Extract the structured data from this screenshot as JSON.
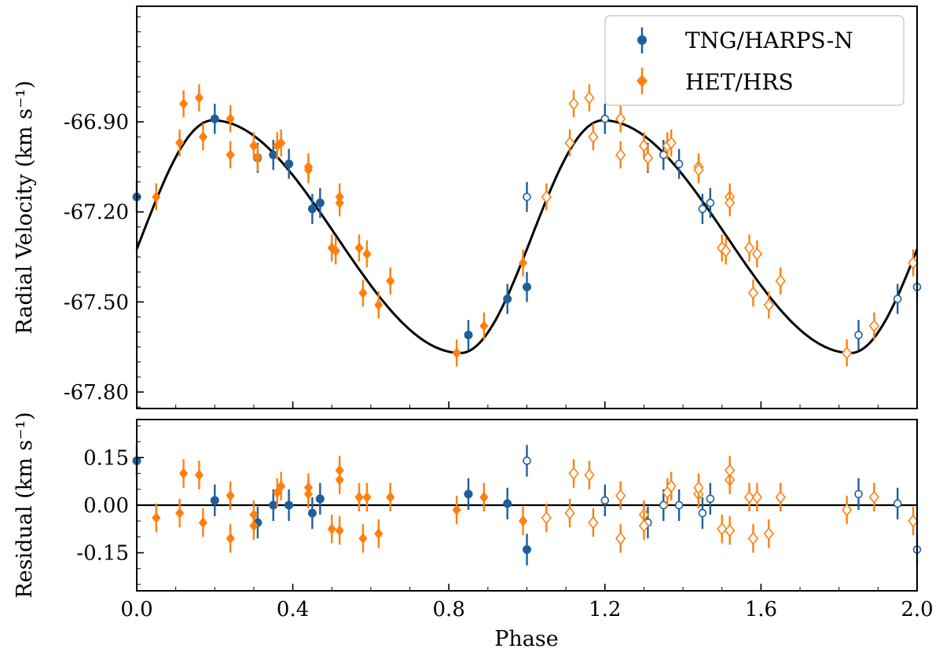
{
  "chart_data": [
    {
      "type": "scatter",
      "panel": "radial-velocity",
      "ylabel": "Radial Velocity (km s⁻¹)",
      "xlabel": "",
      "xlim": [
        0.0,
        2.0
      ],
      "ylim": [
        -67.855,
        -66.515
      ],
      "yticks": [
        "-66.90",
        "-67.20",
        "-67.50",
        "-67.80"
      ],
      "ytick_values": [
        -66.9,
        -67.2,
        -67.5,
        -67.8
      ],
      "legend": {
        "position": "top-right",
        "entries": [
          "TNG/HARPS-N",
          "HET/HRS"
        ]
      },
      "model": {
        "name": "Keplerian fit",
        "period_phase": 1.0,
        "max": -66.895,
        "min": -67.67,
        "peak_phase": 0.195,
        "trough_phase": 0.83
      },
      "series": [
        {
          "name": "TNG/HARPS-N",
          "color": "#1f5f99",
          "marker": "circle",
          "points": [
            {
              "x": 0.0,
              "y": -67.15,
              "e": 0.05
            },
            {
              "x": 0.2,
              "y": -66.89,
              "e": 0.05
            },
            {
              "x": 0.31,
              "y": -67.02,
              "e": 0.05
            },
            {
              "x": 0.35,
              "y": -67.01,
              "e": 0.05
            },
            {
              "x": 0.39,
              "y": -67.04,
              "e": 0.05
            },
            {
              "x": 0.45,
              "y": -67.19,
              "e": 0.05
            },
            {
              "x": 0.47,
              "y": -67.17,
              "e": 0.05
            },
            {
              "x": 0.85,
              "y": -67.61,
              "e": 0.05
            },
            {
              "x": 0.95,
              "y": -67.49,
              "e": 0.05
            },
            {
              "x": 1.0,
              "y": -67.45,
              "e": 0.05
            },
            {
              "x": 1.0,
              "y": -67.15,
              "e": 0.05,
              "open": true
            },
            {
              "x": 1.2,
              "y": -66.89,
              "e": 0.05,
              "open": true
            },
            {
              "x": 1.31,
              "y": -67.02,
              "e": 0.05,
              "open": true
            },
            {
              "x": 1.35,
              "y": -67.01,
              "e": 0.05,
              "open": true
            },
            {
              "x": 1.39,
              "y": -67.04,
              "e": 0.05,
              "open": true
            },
            {
              "x": 1.45,
              "y": -67.19,
              "e": 0.05,
              "open": true
            },
            {
              "x": 1.47,
              "y": -67.17,
              "e": 0.05,
              "open": true
            },
            {
              "x": 1.85,
              "y": -67.61,
              "e": 0.05,
              "open": true
            },
            {
              "x": 1.95,
              "y": -67.49,
              "e": 0.05,
              "open": true
            },
            {
              "x": 2.0,
              "y": -67.45,
              "e": 0.05,
              "open": true
            }
          ]
        },
        {
          "name": "HET/HRS",
          "color": "#ff7f0e",
          "marker": "diamond",
          "points": [
            {
              "x": 0.05,
              "y": -67.15,
              "e": 0.045
            },
            {
              "x": 0.11,
              "y": -66.97,
              "e": 0.045
            },
            {
              "x": 0.12,
              "y": -66.84,
              "e": 0.045
            },
            {
              "x": 0.16,
              "y": -66.82,
              "e": 0.045
            },
            {
              "x": 0.17,
              "y": -66.95,
              "e": 0.045
            },
            {
              "x": 0.24,
              "y": -66.89,
              "e": 0.045
            },
            {
              "x": 0.24,
              "y": -67.01,
              "e": 0.045
            },
            {
              "x": 0.3,
              "y": -66.98,
              "e": 0.045
            },
            {
              "x": 0.31,
              "y": -67.02,
              "e": 0.045
            },
            {
              "x": 0.36,
              "y": -66.98,
              "e": 0.045
            },
            {
              "x": 0.37,
              "y": -66.97,
              "e": 0.045
            },
            {
              "x": 0.44,
              "y": -67.05,
              "e": 0.045
            },
            {
              "x": 0.44,
              "y": -67.06,
              "e": 0.045
            },
            {
              "x": 0.5,
              "y": -67.32,
              "e": 0.045
            },
            {
              "x": 0.51,
              "y": -67.33,
              "e": 0.045
            },
            {
              "x": 0.52,
              "y": -67.15,
              "e": 0.045
            },
            {
              "x": 0.52,
              "y": -67.17,
              "e": 0.045
            },
            {
              "x": 0.57,
              "y": -67.32,
              "e": 0.045
            },
            {
              "x": 0.58,
              "y": -67.47,
              "e": 0.045
            },
            {
              "x": 0.59,
              "y": -67.34,
              "e": 0.045
            },
            {
              "x": 0.62,
              "y": -67.51,
              "e": 0.045
            },
            {
              "x": 0.65,
              "y": -67.43,
              "e": 0.045
            },
            {
              "x": 0.82,
              "y": -67.67,
              "e": 0.045
            },
            {
              "x": 0.89,
              "y": -67.58,
              "e": 0.045
            },
            {
              "x": 0.99,
              "y": -67.37,
              "e": 0.045
            },
            {
              "x": 1.05,
              "y": -67.15,
              "e": 0.045,
              "open": true
            },
            {
              "x": 1.11,
              "y": -66.97,
              "e": 0.045,
              "open": true
            },
            {
              "x": 1.12,
              "y": -66.84,
              "e": 0.045,
              "open": true
            },
            {
              "x": 1.16,
              "y": -66.82,
              "e": 0.045,
              "open": true
            },
            {
              "x": 1.17,
              "y": -66.95,
              "e": 0.045,
              "open": true
            },
            {
              "x": 1.24,
              "y": -66.89,
              "e": 0.045,
              "open": true
            },
            {
              "x": 1.24,
              "y": -67.01,
              "e": 0.045,
              "open": true
            },
            {
              "x": 1.3,
              "y": -66.98,
              "e": 0.045,
              "open": true
            },
            {
              "x": 1.31,
              "y": -67.02,
              "e": 0.045,
              "open": true
            },
            {
              "x": 1.36,
              "y": -66.98,
              "e": 0.045,
              "open": true
            },
            {
              "x": 1.37,
              "y": -66.97,
              "e": 0.045,
              "open": true
            },
            {
              "x": 1.44,
              "y": -67.05,
              "e": 0.045,
              "open": true
            },
            {
              "x": 1.44,
              "y": -67.06,
              "e": 0.045,
              "open": true
            },
            {
              "x": 1.5,
              "y": -67.32,
              "e": 0.045,
              "open": true
            },
            {
              "x": 1.51,
              "y": -67.33,
              "e": 0.045,
              "open": true
            },
            {
              "x": 1.52,
              "y": -67.15,
              "e": 0.045,
              "open": true
            },
            {
              "x": 1.52,
              "y": -67.17,
              "e": 0.045,
              "open": true
            },
            {
              "x": 1.57,
              "y": -67.32,
              "e": 0.045,
              "open": true
            },
            {
              "x": 1.58,
              "y": -67.47,
              "e": 0.045,
              "open": true
            },
            {
              "x": 1.59,
              "y": -67.34,
              "e": 0.045,
              "open": true
            },
            {
              "x": 1.62,
              "y": -67.51,
              "e": 0.045,
              "open": true
            },
            {
              "x": 1.65,
              "y": -67.43,
              "e": 0.045,
              "open": true
            },
            {
              "x": 1.82,
              "y": -67.67,
              "e": 0.045,
              "open": true
            },
            {
              "x": 1.89,
              "y": -67.58,
              "e": 0.045,
              "open": true
            },
            {
              "x": 1.99,
              "y": -67.37,
              "e": 0.045,
              "open": true
            }
          ]
        }
      ]
    },
    {
      "type": "scatter",
      "panel": "residual",
      "xlabel": "Phase",
      "ylabel": "Residual (km s⁻¹)",
      "xlim": [
        0.0,
        2.0
      ],
      "ylim": [
        -0.27,
        0.27
      ],
      "xticks": [
        "0.0",
        "0.4",
        "0.8",
        "1.2",
        "1.6",
        "2.0"
      ],
      "xtick_values": [
        0.0,
        0.4,
        0.8,
        1.2,
        1.6,
        2.0
      ],
      "yticks": [
        "0.15",
        "0.00",
        "-0.15"
      ],
      "ytick_values": [
        0.15,
        0.0,
        -0.15
      ],
      "zero_line": 0.0,
      "series": [
        {
          "name": "TNG/HARPS-N",
          "color": "#1f5f99",
          "marker": "circle",
          "points": [
            {
              "x": 0.0,
              "y": 0.14,
              "e": 0.05
            },
            {
              "x": 0.2,
              "y": 0.015,
              "e": 0.05
            },
            {
              "x": 0.31,
              "y": -0.055,
              "e": 0.05
            },
            {
              "x": 0.35,
              "y": 0.0,
              "e": 0.05
            },
            {
              "x": 0.39,
              "y": 0.0,
              "e": 0.05
            },
            {
              "x": 0.45,
              "y": -0.025,
              "e": 0.05
            },
            {
              "x": 0.47,
              "y": 0.02,
              "e": 0.05
            },
            {
              "x": 0.85,
              "y": 0.035,
              "e": 0.05
            },
            {
              "x": 0.95,
              "y": 0.005,
              "e": 0.05
            },
            {
              "x": 1.0,
              "y": -0.14,
              "e": 0.05
            },
            {
              "x": 1.0,
              "y": 0.14,
              "e": 0.05,
              "open": true
            },
            {
              "x": 1.2,
              "y": 0.015,
              "e": 0.05,
              "open": true
            },
            {
              "x": 1.31,
              "y": -0.055,
              "e": 0.05,
              "open": true
            },
            {
              "x": 1.35,
              "y": 0.0,
              "e": 0.05,
              "open": true
            },
            {
              "x": 1.39,
              "y": 0.0,
              "e": 0.05,
              "open": true
            },
            {
              "x": 1.45,
              "y": -0.025,
              "e": 0.05,
              "open": true
            },
            {
              "x": 1.47,
              "y": 0.02,
              "e": 0.05,
              "open": true
            },
            {
              "x": 1.85,
              "y": 0.035,
              "e": 0.05,
              "open": true
            },
            {
              "x": 1.95,
              "y": 0.005,
              "e": 0.05,
              "open": true
            },
            {
              "x": 2.0,
              "y": -0.14,
              "e": 0.05,
              "open": true
            }
          ]
        },
        {
          "name": "HET/HRS",
          "color": "#ff7f0e",
          "marker": "diamond",
          "points": [
            {
              "x": 0.05,
              "y": -0.04,
              "e": 0.045
            },
            {
              "x": 0.11,
              "y": -0.025,
              "e": 0.045
            },
            {
              "x": 0.12,
              "y": 0.1,
              "e": 0.045
            },
            {
              "x": 0.16,
              "y": 0.095,
              "e": 0.045
            },
            {
              "x": 0.17,
              "y": -0.055,
              "e": 0.045
            },
            {
              "x": 0.24,
              "y": 0.03,
              "e": 0.045
            },
            {
              "x": 0.24,
              "y": -0.105,
              "e": 0.045
            },
            {
              "x": 0.3,
              "y": -0.03,
              "e": 0.045
            },
            {
              "x": 0.3,
              "y": -0.065,
              "e": 0.045
            },
            {
              "x": 0.36,
              "y": 0.04,
              "e": 0.045
            },
            {
              "x": 0.37,
              "y": 0.06,
              "e": 0.045
            },
            {
              "x": 0.44,
              "y": 0.035,
              "e": 0.045
            },
            {
              "x": 0.44,
              "y": 0.055,
              "e": 0.045
            },
            {
              "x": 0.5,
              "y": -0.075,
              "e": 0.045
            },
            {
              "x": 0.52,
              "y": -0.08,
              "e": 0.045
            },
            {
              "x": 0.52,
              "y": 0.08,
              "e": 0.045
            },
            {
              "x": 0.52,
              "y": 0.11,
              "e": 0.045
            },
            {
              "x": 0.57,
              "y": 0.025,
              "e": 0.045
            },
            {
              "x": 0.58,
              "y": -0.105,
              "e": 0.045
            },
            {
              "x": 0.59,
              "y": 0.025,
              "e": 0.045
            },
            {
              "x": 0.62,
              "y": -0.09,
              "e": 0.045
            },
            {
              "x": 0.65,
              "y": 0.025,
              "e": 0.045
            },
            {
              "x": 0.82,
              "y": -0.015,
              "e": 0.045
            },
            {
              "x": 0.89,
              "y": 0.025,
              "e": 0.045
            },
            {
              "x": 0.99,
              "y": -0.05,
              "e": 0.045
            },
            {
              "x": 1.05,
              "y": -0.04,
              "e": 0.045,
              "open": true
            },
            {
              "x": 1.11,
              "y": -0.025,
              "e": 0.045,
              "open": true
            },
            {
              "x": 1.12,
              "y": 0.1,
              "e": 0.045,
              "open": true
            },
            {
              "x": 1.16,
              "y": 0.095,
              "e": 0.045,
              "open": true
            },
            {
              "x": 1.17,
              "y": -0.055,
              "e": 0.045,
              "open": true
            },
            {
              "x": 1.24,
              "y": 0.03,
              "e": 0.045,
              "open": true
            },
            {
              "x": 1.24,
              "y": -0.105,
              "e": 0.045,
              "open": true
            },
            {
              "x": 1.3,
              "y": -0.03,
              "e": 0.045,
              "open": true
            },
            {
              "x": 1.3,
              "y": -0.065,
              "e": 0.045,
              "open": true
            },
            {
              "x": 1.36,
              "y": 0.04,
              "e": 0.045,
              "open": true
            },
            {
              "x": 1.37,
              "y": 0.06,
              "e": 0.045,
              "open": true
            },
            {
              "x": 1.44,
              "y": 0.035,
              "e": 0.045,
              "open": true
            },
            {
              "x": 1.44,
              "y": 0.055,
              "e": 0.045,
              "open": true
            },
            {
              "x": 1.5,
              "y": -0.075,
              "e": 0.045,
              "open": true
            },
            {
              "x": 1.52,
              "y": -0.08,
              "e": 0.045,
              "open": true
            },
            {
              "x": 1.52,
              "y": 0.08,
              "e": 0.045,
              "open": true
            },
            {
              "x": 1.52,
              "y": 0.11,
              "e": 0.045,
              "open": true
            },
            {
              "x": 1.57,
              "y": 0.025,
              "e": 0.045,
              "open": true
            },
            {
              "x": 1.58,
              "y": -0.105,
              "e": 0.045,
              "open": true
            },
            {
              "x": 1.59,
              "y": 0.025,
              "e": 0.045,
              "open": true
            },
            {
              "x": 1.62,
              "y": -0.09,
              "e": 0.045,
              "open": true
            },
            {
              "x": 1.65,
              "y": 0.025,
              "e": 0.045,
              "open": true
            },
            {
              "x": 1.82,
              "y": -0.015,
              "e": 0.045,
              "open": true
            },
            {
              "x": 1.89,
              "y": 0.025,
              "e": 0.045,
              "open": true
            },
            {
              "x": 1.99,
              "y": -0.05,
              "e": 0.045,
              "open": true
            }
          ]
        }
      ]
    }
  ]
}
